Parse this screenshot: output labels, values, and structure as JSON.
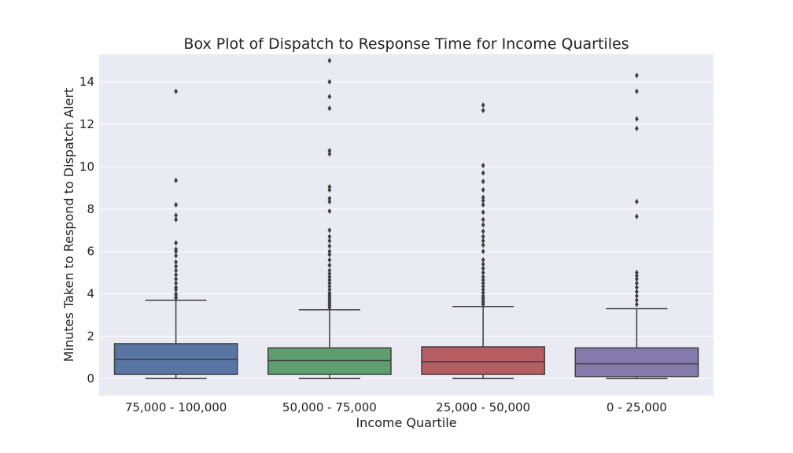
{
  "chart_data": {
    "type": "box",
    "title": "Box Plot of Dispatch to Response Time for Income Quartiles",
    "xlabel": "Income Quartile",
    "ylabel": "Minutes Taken to Respond to Dispatch Alert",
    "ylim": [
      -0.8,
      15.3
    ],
    "yticks": [
      0,
      2,
      4,
      6,
      8,
      10,
      12,
      14
    ],
    "ytick_labels": [
      "0",
      "2",
      "4",
      "6",
      "8",
      "10",
      "12",
      "14"
    ],
    "grid": true,
    "background": "#EAEAF2",
    "categories": [
      "75,000 - 100,000",
      "50,000 - 75,000",
      "25,000 - 50,000",
      "0 - 25,000"
    ],
    "boxes": [
      {
        "category": "75,000 - 100,000",
        "color": "#5875A4",
        "whisker_low": 0.0,
        "q1": 0.2,
        "median": 0.9,
        "q3": 1.65,
        "whisker_high": 3.7,
        "outliers": [
          3.8,
          3.9,
          4.0,
          4.2,
          4.3,
          4.5,
          4.7,
          4.9,
          5.1,
          5.3,
          5.5,
          5.8,
          6.0,
          6.1,
          6.4,
          7.5,
          7.7,
          8.2,
          9.35,
          13.55
        ]
      },
      {
        "category": "50,000 - 75,000",
        "color": "#5F9E6E",
        "whisker_low": 0.0,
        "q1": 0.2,
        "median": 0.85,
        "q3": 1.45,
        "whisker_high": 3.25,
        "outliers": [
          3.35,
          3.45,
          3.55,
          3.65,
          3.75,
          3.85,
          3.95,
          4.05,
          4.2,
          4.35,
          4.5,
          4.65,
          4.8,
          4.95,
          5.1,
          5.35,
          5.6,
          5.85,
          6.0,
          6.25,
          6.5,
          6.7,
          7.0,
          7.9,
          8.35,
          8.5,
          8.9,
          9.05,
          10.6,
          10.75,
          12.75,
          13.3,
          14.0,
          15.0
        ]
      },
      {
        "category": "25,000 - 50,000",
        "color": "#B55D60",
        "whisker_low": 0.0,
        "q1": 0.2,
        "median": 0.8,
        "q3": 1.5,
        "whisker_high": 3.4,
        "outliers": [
          3.5,
          3.6,
          3.7,
          3.8,
          3.9,
          4.05,
          4.2,
          4.35,
          4.5,
          4.65,
          4.8,
          5.0,
          5.2,
          5.4,
          5.6,
          6.0,
          6.3,
          6.5,
          6.7,
          6.95,
          7.25,
          7.5,
          7.85,
          8.2,
          8.4,
          8.55,
          8.9,
          9.3,
          9.7,
          10.05,
          12.65,
          12.9
        ]
      },
      {
        "category": "0 - 25,000",
        "color": "#857AAB",
        "whisker_low": 0.0,
        "q1": 0.1,
        "median": 0.7,
        "q3": 1.45,
        "whisker_high": 3.3,
        "outliers": [
          3.5,
          3.7,
          3.9,
          4.1,
          4.3,
          4.5,
          4.7,
          4.85,
          5.0,
          7.65,
          8.35,
          11.8,
          12.25,
          13.55,
          14.3
        ]
      }
    ]
  }
}
